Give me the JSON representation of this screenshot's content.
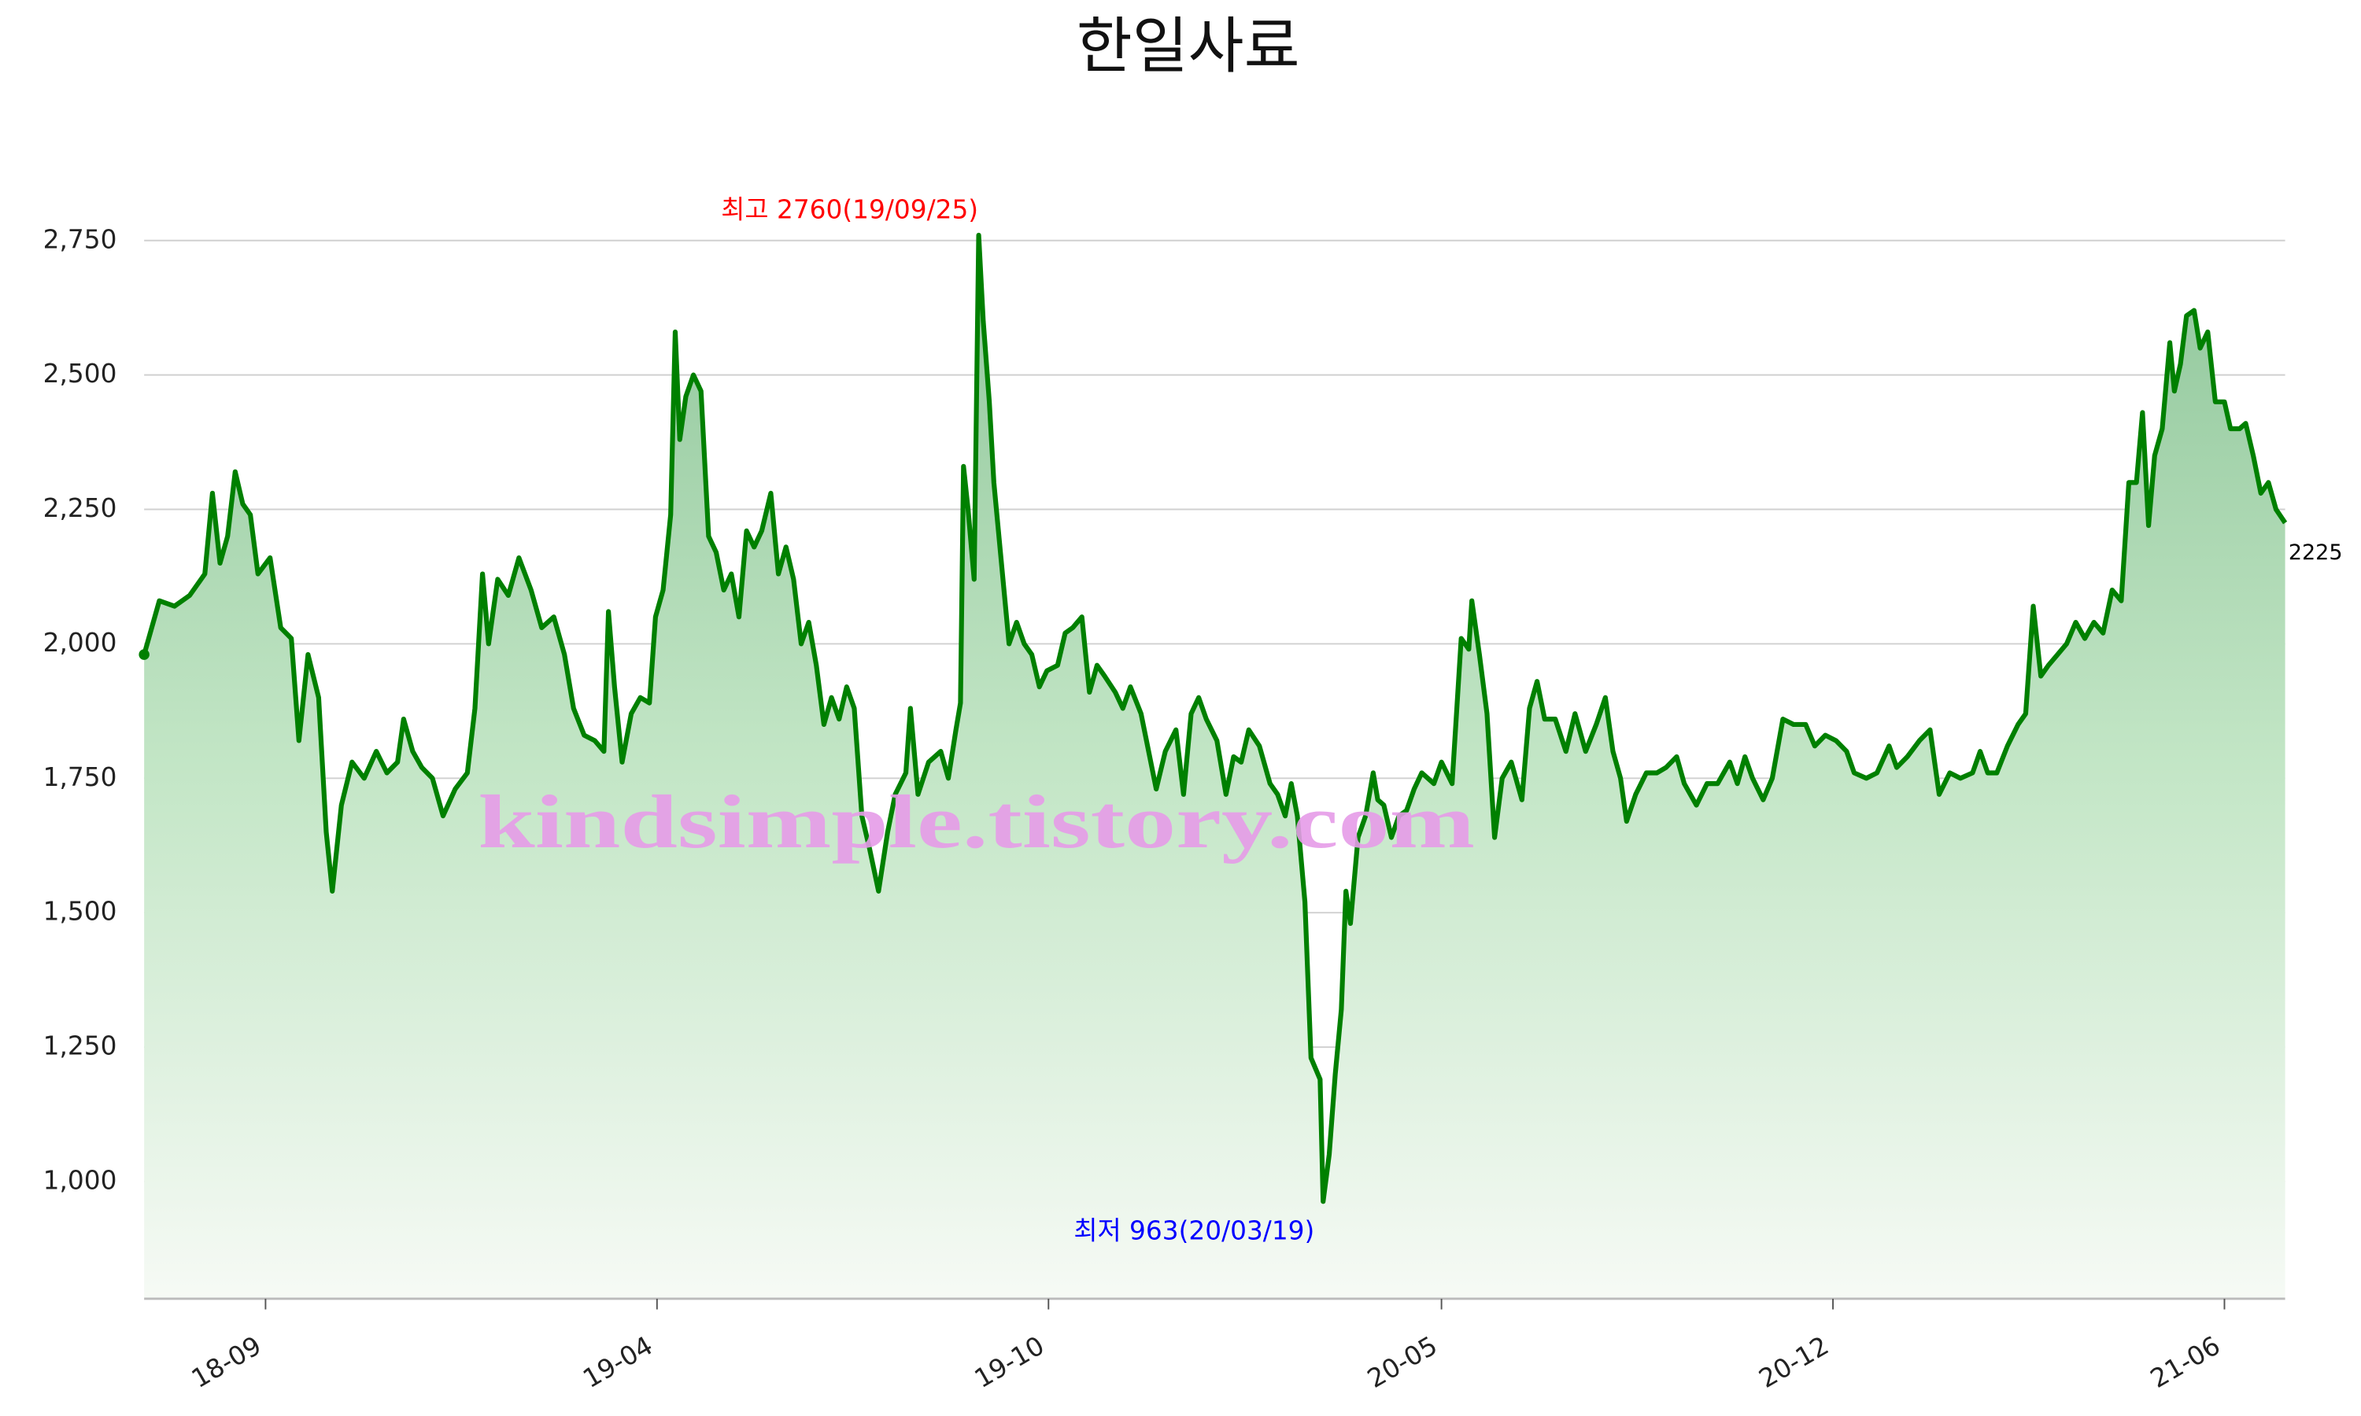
{
  "chart_data": {
    "type": "line",
    "title": "한일사료",
    "x": [
      0,
      10,
      20,
      30,
      40,
      45,
      50,
      55,
      60,
      65,
      70,
      75,
      83,
      90,
      97,
      102,
      108,
      115,
      120,
      124,
      130,
      137,
      145,
      153,
      160,
      167,
      171,
      177,
      183,
      190,
      197,
      205,
      213,
      218,
      223,
      227,
      233,
      240,
      247,
      255,
      262,
      270,
      277,
      283,
      290,
      297,
      303,
      306,
      310,
      315,
      321,
      327,
      333,
      337,
      342,
      347,
      350,
      353,
      357,
      362,
      367,
      372,
      377,
      382,
      387,
      392,
      397,
      402,
      407,
      413,
      418,
      423,
      428,
      433,
      438,
      443,
      448,
      453,
      458,
      463,
      468,
      473,
      478,
      484,
      490,
      495,
      502,
      505,
      510,
      517,
      525,
      530,
      535,
      538,
      540,
      543,
      547,
      550,
      553,
      557,
      560,
      565,
      570,
      575,
      580,
      585,
      590,
      595,
      602,
      607,
      612,
      618,
      623,
      628,
      633,
      640,
      645,
      650,
      657,
      662,
      667,
      673,
      680,
      685,
      690,
      695,
      700,
      707,
      713,
      718,
      723,
      728,
      735,
      742,
      747,
      752,
      756,
      760,
      765,
      769,
      775,
      777,
      781,
      785,
      789,
      792,
      795,
      800,
      805,
      810,
      813,
      817,
      822,
      827,
      832,
      837,
      842,
      850,
      855,
      862,
      868,
      873,
      875,
      880,
      885,
      890,
      895,
      901,
      908,
      913,
      918,
      923,
      930,
      937,
      943,
      950,
      957,
      963,
      968,
      973,
      977,
      983,
      990,
      997,
      1003,
      1010,
      1015,
      1023,
      1030,
      1037,
      1045,
      1050,
      1055,
      1060,
      1067,
      1073,
      1080,
      1087,
      1095,
      1101,
      1108,
      1115,
      1122,
      1127,
      1135,
      1142,
      1150,
      1155,
      1162,
      1170,
      1177,
      1183,
      1190,
      1197,
      1205,
      1210,
      1215,
      1221,
      1228,
      1235,
      1240,
      1245,
      1250,
      1255,
      1261,
      1267,
      1273,
      1279,
      1285,
      1291,
      1297,
      1303,
      1308,
      1313,
      1317,
      1321,
      1325,
      1330,
      1335,
      1338,
      1342,
      1346,
      1351,
      1355,
      1360,
      1365,
      1371,
      1375,
      1381,
      1385,
      1390,
      1395,
      1400,
      1405,
      1411
    ],
    "xlim": [
      0,
      1411
    ],
    "xticks": [
      {
        "value": 80,
        "label": "18-09"
      },
      {
        "value": 338,
        "label": "19-04"
      },
      {
        "value": 596,
        "label": "19-10"
      },
      {
        "value": 855,
        "label": "20-05"
      },
      {
        "value": 1113,
        "label": "20-12"
      },
      {
        "value": 1371,
        "label": "21-06"
      }
    ],
    "ylim": [
      782,
      2900
    ],
    "yticks": [
      {
        "value": 1000,
        "label": "1,000"
      },
      {
        "value": 1250,
        "label": "1,250"
      },
      {
        "value": 1500,
        "label": "1,500"
      },
      {
        "value": 1750,
        "label": "1,750"
      },
      {
        "value": 2000,
        "label": "2,000"
      },
      {
        "value": 2250,
        "label": "2,250"
      },
      {
        "value": 2500,
        "label": "2,500"
      },
      {
        "value": 2750,
        "label": "2,750"
      }
    ],
    "grid": true,
    "series": [
      {
        "name": "한일사료",
        "color": "#008000",
        "values": [
          1980,
          2080,
          2070,
          2090,
          2130,
          2280,
          2150,
          2200,
          2320,
          2260,
          2240,
          2130,
          2160,
          2030,
          2010,
          1820,
          1980,
          1900,
          1650,
          1540,
          1700,
          1780,
          1750,
          1800,
          1760,
          1780,
          1860,
          1800,
          1770,
          1750,
          1680,
          1730,
          1760,
          1880,
          2130,
          2000,
          2120,
          2090,
          2160,
          2100,
          2030,
          2050,
          1980,
          1880,
          1830,
          1820,
          1800,
          2060,
          1920,
          1780,
          1870,
          1900,
          1890,
          2050,
          2100,
          2240,
          2580,
          2380,
          2460,
          2500,
          2470,
          2200,
          2170,
          2100,
          2130,
          2050,
          2210,
          2180,
          2210,
          2280,
          2130,
          2180,
          2120,
          2000,
          2040,
          1960,
          1850,
          1900,
          1860,
          1920,
          1880,
          1680,
          1620,
          1540,
          1650,
          1720,
          1760,
          1880,
          1720,
          1780,
          1800,
          1750,
          1840,
          1890,
          2330,
          2250,
          2120,
          2760,
          2600,
          2450,
          2300,
          2150,
          2000,
          2040,
          2000,
          1980,
          1920,
          1950,
          1960,
          2020,
          2030,
          2050,
          1910,
          1960,
          1940,
          1910,
          1880,
          1920,
          1870,
          1800,
          1730,
          1800,
          1840,
          1720,
          1870,
          1900,
          1860,
          1820,
          1720,
          1790,
          1780,
          1840,
          1810,
          1740,
          1720,
          1680,
          1740,
          1680,
          1520,
          1230,
          1190,
          963,
          1050,
          1200,
          1320,
          1540,
          1480,
          1640,
          1680,
          1760,
          1710,
          1700,
          1640,
          1680,
          1690,
          1730,
          1760,
          1740,
          1780,
          1740,
          2010,
          1990,
          2080,
          1980,
          1870,
          1640,
          1750,
          1780,
          1710,
          1880,
          1930,
          1860,
          1860,
          1800,
          1870,
          1800,
          1850,
          1900,
          1800,
          1750,
          1670,
          1720,
          1760,
          1760,
          1770,
          1790,
          1740,
          1700,
          1740,
          1740,
          1780,
          1740,
          1790,
          1750,
          1710,
          1750,
          1860,
          1850,
          1850,
          1810,
          1830,
          1820,
          1800,
          1760,
          1750,
          1760,
          1810,
          1770,
          1790,
          1820,
          1840,
          1720,
          1760,
          1750,
          1760,
          1800,
          1760,
          1760,
          1810,
          1850,
          1870,
          2070,
          1940,
          1960,
          1980,
          2000,
          2040,
          2010,
          2040,
          2020,
          2100,
          2080,
          2300,
          2300,
          2430,
          2220,
          2350,
          2400,
          2560,
          2470,
          2520,
          2610,
          2620,
          2550,
          2580,
          2450,
          2450,
          2400,
          2400,
          2410,
          2350,
          2280,
          2300,
          2250,
          2225
        ]
      }
    ],
    "annotations": [
      {
        "text": "최고 2760(19/09/25)",
        "x": 550,
        "y": 2760,
        "color": "#ff0000",
        "place": "above"
      },
      {
        "text": "최저 963(20/03/19)",
        "x": 777,
        "y": 963,
        "color": "#0000ff",
        "place": "below"
      },
      {
        "text": "2225",
        "x": 1411,
        "y": 2225,
        "color": "#000000",
        "place": "right"
      }
    ],
    "watermark": "kindsimple.tistory.com"
  }
}
